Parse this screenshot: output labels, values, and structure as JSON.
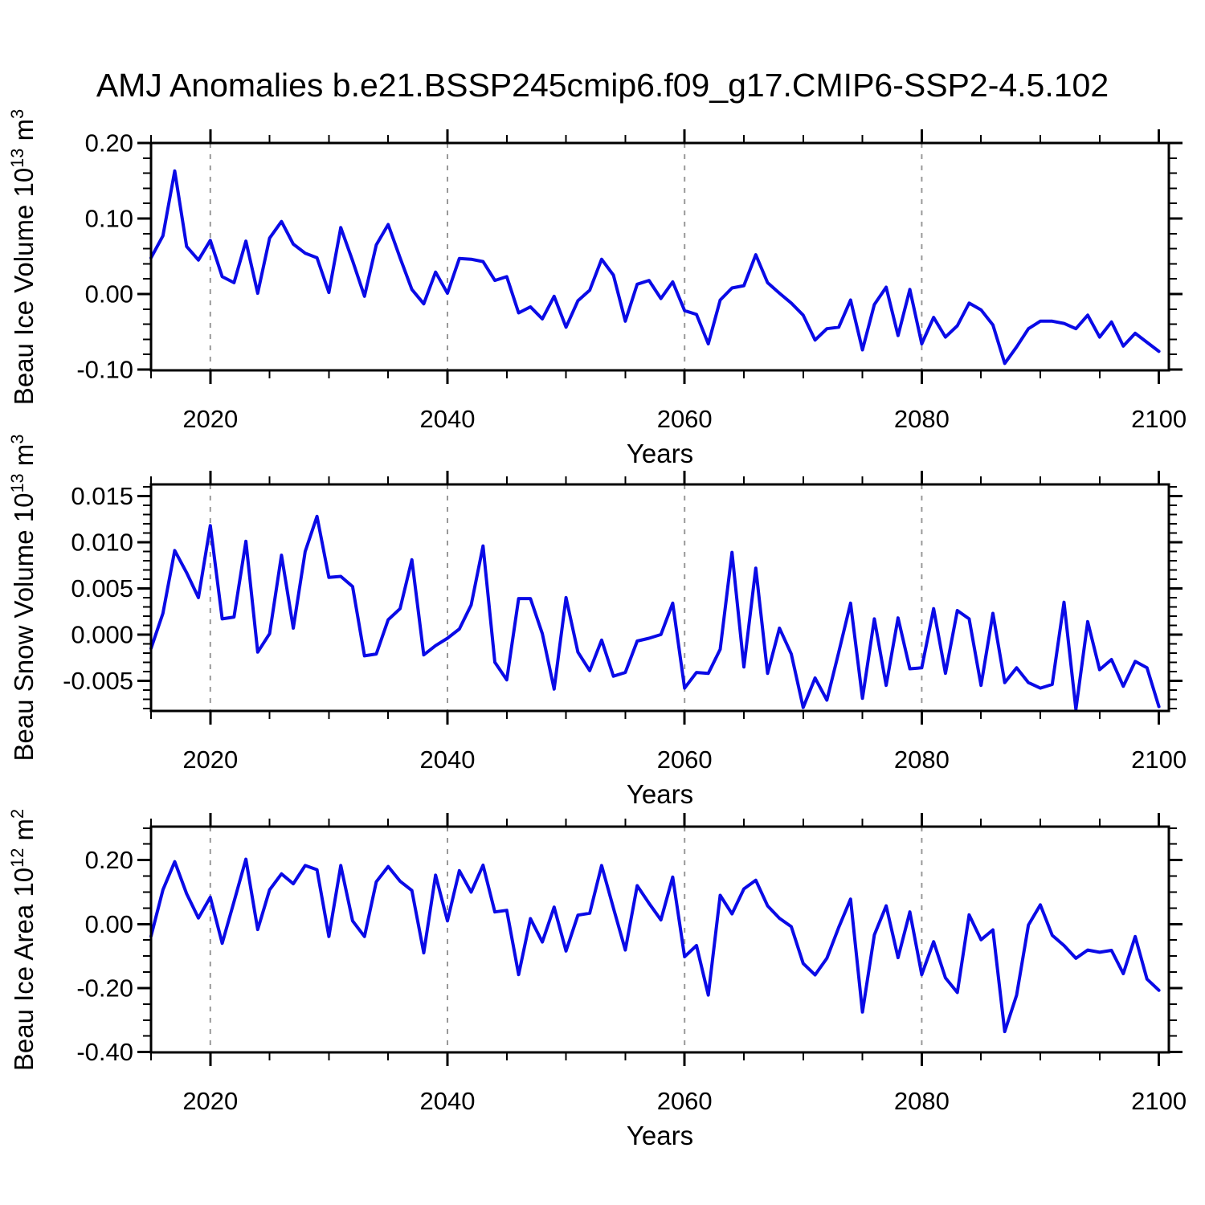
{
  "title": "AMJ Anomalies b.e21.BSSP245cmip6.f09_g17.CMIP6-SSP2-4.5.102",
  "colors": {
    "line": "#0a0ae6",
    "axis": "#000000",
    "grid": "#999999",
    "background": "#ffffff",
    "text": "#000000"
  },
  "years": [
    2015,
    2016,
    2017,
    2018,
    2019,
    2020,
    2021,
    2022,
    2023,
    2024,
    2025,
    2026,
    2027,
    2028,
    2029,
    2030,
    2031,
    2032,
    2033,
    2034,
    2035,
    2036,
    2037,
    2038,
    2039,
    2040,
    2041,
    2042,
    2043,
    2044,
    2045,
    2046,
    2047,
    2048,
    2049,
    2050,
    2051,
    2052,
    2053,
    2054,
    2055,
    2056,
    2057,
    2058,
    2059,
    2060,
    2061,
    2062,
    2063,
    2064,
    2065,
    2066,
    2067,
    2068,
    2069,
    2070,
    2071,
    2072,
    2073,
    2074,
    2075,
    2076,
    2077,
    2078,
    2079,
    2080,
    2081,
    2082,
    2083,
    2084,
    2085,
    2086,
    2087,
    2088,
    2089,
    2090,
    2091,
    2092,
    2093,
    2094,
    2095,
    2096,
    2097,
    2098,
    2099,
    2100
  ],
  "x_axis": {
    "range": [
      2015,
      2100.8
    ],
    "major_ticks": [
      2020,
      2040,
      2060,
      2080,
      2100
    ],
    "tick_labels": [
      "2020",
      "2040",
      "2060",
      "2080",
      "2100"
    ],
    "minor_step": 5,
    "grid_years": [
      2020,
      2040,
      2060,
      2080
    ],
    "grid_style": "dashed"
  },
  "chart_data": [
    {
      "type": "line",
      "name": "beau-ice-volume",
      "x_label": "Years",
      "ylabel": "Beau Ice Volume 10¹³ m³",
      "ylabel_parts": [
        [
          "Beau Ice Volume 10",
          "n"
        ],
        [
          "13",
          "s"
        ],
        [
          " m",
          "n"
        ],
        [
          "3",
          "s"
        ]
      ],
      "ylim": [
        -0.1011,
        0.2
      ],
      "yticks": [
        0.2,
        0.1,
        0.0,
        -0.1
      ],
      "ytick_labels": [
        "0.20",
        "0.10",
        "0.00",
        "-0.10"
      ],
      "y_major_step": 0.1,
      "y_minor_step": 0.02,
      "values": [
        0.048,
        0.077,
        0.163,
        0.063,
        0.045,
        0.071,
        0.023,
        0.015,
        0.07,
        0.001,
        0.074,
        0.096,
        0.066,
        0.054,
        0.048,
        0.002,
        0.088,
        0.044,
        -0.003,
        0.065,
        0.092,
        0.048,
        0.006,
        -0.013,
        0.029,
        0.001,
        0.047,
        0.046,
        0.043,
        0.018,
        0.023,
        -0.025,
        -0.017,
        -0.033,
        -0.003,
        -0.044,
        -0.009,
        0.005,
        0.046,
        0.025,
        -0.036,
        0.013,
        0.018,
        -0.006,
        0.016,
        -0.022,
        -0.027,
        -0.066,
        -0.008,
        0.008,
        0.011,
        0.052,
        0.015,
        0.001,
        -0.012,
        -0.028,
        -0.061,
        -0.046,
        -0.044,
        -0.008,
        -0.074,
        -0.014,
        0.009,
        -0.055,
        0.006,
        -0.066,
        -0.031,
        -0.057,
        -0.042,
        -0.012,
        -0.021,
        -0.041,
        -0.092,
        -0.07,
        -0.046,
        -0.036,
        -0.036,
        -0.039,
        -0.046,
        -0.028,
        -0.057,
        -0.037,
        -0.069,
        -0.052,
        -0.064,
        -0.076
      ]
    },
    {
      "type": "line",
      "name": "beau-snow-volume",
      "x_label": "Years",
      "ylabel": "Beau Snow Volume 10¹³ m³",
      "ylabel_parts": [
        [
          "Beau Snow Volume 10",
          "n"
        ],
        [
          "13",
          "s"
        ],
        [
          " m",
          "n"
        ],
        [
          "3",
          "s"
        ]
      ],
      "ylim": [
        -0.00827,
        0.01626
      ],
      "yticks": [
        0.015,
        0.01,
        0.005,
        0.0,
        -0.005
      ],
      "ytick_labels": [
        "0.015",
        "0.010",
        "0.005",
        "0.000",
        "-0.005"
      ],
      "y_major_step": 0.005,
      "y_minor_step": 0.001,
      "values": [
        -0.0015,
        0.0023,
        0.0091,
        0.0067,
        0.004,
        0.0118,
        0.0017,
        0.0019,
        0.0101,
        -0.0019,
        0.0001,
        0.0086,
        0.0007,
        0.009,
        0.0128,
        0.0062,
        0.0063,
        0.0052,
        -0.0023,
        -0.0021,
        0.0016,
        0.0028,
        0.0081,
        -0.0022,
        -0.0012,
        -0.0004,
        0.0006,
        0.0032,
        0.0096,
        -0.003,
        -0.0049,
        0.0039,
        0.0039,
        0.0001,
        -0.0059,
        0.004,
        -0.0019,
        -0.0039,
        -0.0006,
        -0.0045,
        -0.0041,
        -0.0007,
        -0.0004,
        0.0,
        0.0034,
        -0.0058,
        -0.0041,
        -0.0042,
        -0.0016,
        0.0089,
        -0.0035,
        0.0072,
        -0.0042,
        0.0007,
        -0.0021,
        -0.0079,
        -0.0047,
        -0.0071,
        -0.0019,
        0.0034,
        -0.0069,
        0.0017,
        -0.0055,
        0.0018,
        -0.0037,
        -0.0036,
        0.0028,
        -0.0042,
        0.0026,
        0.0017,
        -0.0055,
        0.0023,
        -0.0052,
        -0.0036,
        -0.0052,
        -0.0058,
        -0.0054,
        0.0035,
        -0.0081,
        0.0014,
        -0.0038,
        -0.0027,
        -0.0056,
        -0.0029,
        -0.0036,
        -0.0078
      ]
    },
    {
      "type": "line",
      "name": "beau-ice-area",
      "x_label": "Years",
      "ylabel": "Beau Ice Area 10¹² m²",
      "ylabel_parts": [
        [
          "Beau Ice Area 10",
          "n"
        ],
        [
          "12",
          "s"
        ],
        [
          " m",
          "n"
        ],
        [
          "2",
          "s"
        ]
      ],
      "ylim": [
        -0.401,
        0.3046
      ],
      "yticks": [
        0.2,
        0.0,
        -0.2,
        -0.4
      ],
      "ytick_labels": [
        "0.20",
        "0.00",
        "-0.20",
        "-0.40"
      ],
      "y_major_step": 0.2,
      "y_minor_step": 0.05,
      "values": [
        -0.038,
        0.107,
        0.195,
        0.095,
        0.019,
        0.084,
        -0.06,
        0.07,
        0.203,
        -0.017,
        0.107,
        0.157,
        0.126,
        0.183,
        0.17,
        -0.039,
        0.183,
        0.01,
        -0.039,
        0.132,
        0.18,
        0.134,
        0.105,
        -0.09,
        0.153,
        0.01,
        0.167,
        0.1,
        0.184,
        0.038,
        0.043,
        -0.158,
        0.017,
        -0.056,
        0.053,
        -0.084,
        0.028,
        0.034,
        0.183,
        0.05,
        -0.081,
        0.12,
        0.065,
        0.013,
        0.147,
        -0.102,
        -0.067,
        -0.222,
        0.09,
        0.032,
        0.11,
        0.137,
        0.057,
        0.018,
        -0.008,
        -0.123,
        -0.159,
        -0.107,
        -0.01,
        0.078,
        -0.275,
        -0.034,
        0.057,
        -0.105,
        0.038,
        -0.158,
        -0.055,
        -0.168,
        -0.214,
        0.029,
        -0.049,
        -0.018,
        -0.336,
        -0.222,
        -0.003,
        0.06,
        -0.035,
        -0.067,
        -0.107,
        -0.081,
        -0.088,
        -0.082,
        -0.155,
        -0.039,
        -0.172,
        -0.207
      ]
    }
  ]
}
